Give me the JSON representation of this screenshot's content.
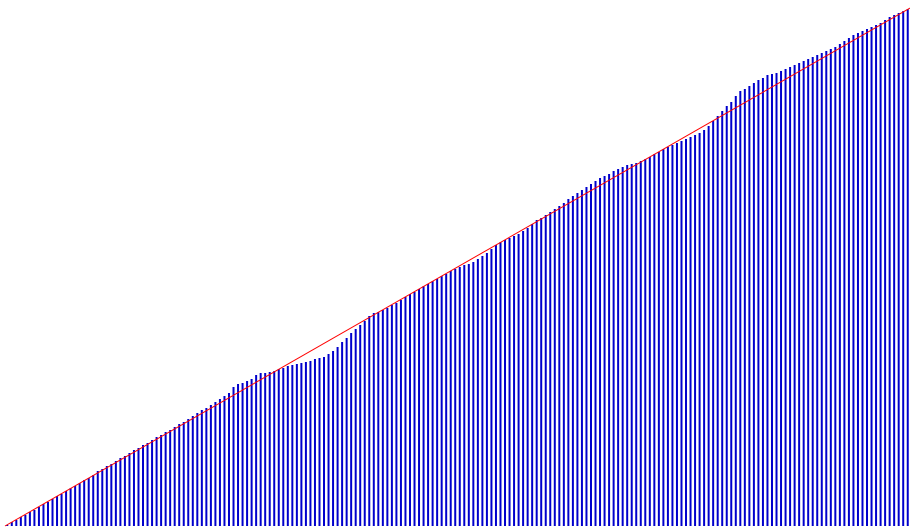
{
  "chart_data": {
    "type": "bar",
    "color": "#0000cc",
    "values": [
      1,
      4,
      6,
      9,
      11,
      14,
      16,
      19,
      22,
      24,
      27,
      30,
      32,
      35,
      38,
      40,
      43,
      46,
      48,
      51,
      55,
      57,
      60,
      62,
      65,
      68,
      70,
      73,
      76,
      78,
      81,
      83,
      86,
      89,
      91,
      94,
      96,
      99,
      102,
      104,
      107,
      110,
      113,
      116,
      118,
      121,
      124,
      127,
      130,
      133,
      139,
      142,
      143,
      145,
      147,
      151,
      153,
      153,
      154,
      155,
      157,
      158,
      160,
      161,
      162,
      163,
      164,
      165,
      167,
      168,
      169,
      172,
      175,
      179,
      184,
      188,
      193,
      197,
      201,
      205,
      210,
      213,
      214,
      216,
      218,
      221,
      223,
      226,
      229,
      232,
      234,
      237,
      240,
      242,
      245,
      247,
      250,
      252,
      255,
      257,
      259,
      261,
      262,
      264,
      267,
      270,
      273,
      277,
      281,
      284,
      286,
      288,
      290,
      292,
      295,
      298,
      302,
      306,
      308,
      311,
      314,
      317,
      320,
      323,
      327,
      330,
      333,
      336,
      339,
      342,
      345,
      348,
      350,
      352,
      355,
      357,
      359,
      361,
      362,
      363,
      365,
      367,
      369,
      372,
      374,
      377,
      379,
      381,
      383,
      385,
      387,
      389,
      391,
      393,
      396,
      400,
      405,
      410,
      415,
      420,
      424,
      430,
      435,
      437,
      440,
      443,
      446,
      448,
      451,
      452,
      453,
      455,
      457,
      459,
      461,
      463,
      465,
      467,
      469,
      471,
      473,
      475,
      477,
      479,
      482,
      485,
      488,
      491,
      493,
      495,
      497,
      499,
      501,
      503,
      506,
      509,
      511,
      513,
      515,
      517
    ],
    "ylim": [
      0,
      518
    ],
    "reference_line": {
      "color": "#ff0000",
      "values": [
        0,
        518
      ]
    }
  }
}
